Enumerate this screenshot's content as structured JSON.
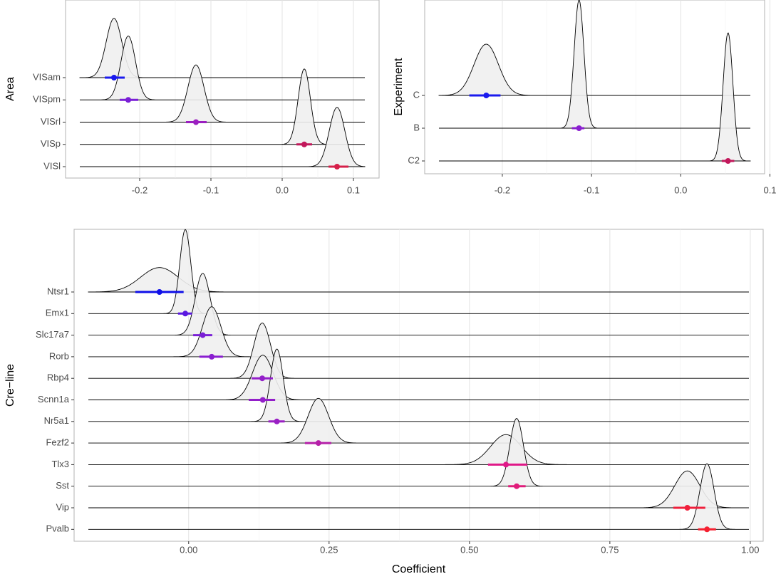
{
  "chart_data": [
    {
      "type": "ridgeline",
      "y_label": "Area",
      "categories": [
        "VISam",
        "VISpm",
        "VISrl",
        "VISp",
        "VISl"
      ],
      "values": [
        -0.236,
        -0.216,
        -0.121,
        0.031,
        0.077
      ],
      "lower": [
        -0.249,
        -0.228,
        -0.135,
        0.02,
        0.065
      ],
      "upper": [
        -0.221,
        -0.202,
        -0.106,
        0.042,
        0.093
      ],
      "colors": [
        "#1a1aee",
        "#7a1fd6",
        "#9b1fc0",
        "#c2185b",
        "#d6204a"
      ],
      "xlim": [
        -0.304,
        0.136
      ],
      "xticks": [
        -0.2,
        -0.1,
        {
          "value": 0,
          "label": "0.0"
        },
        0.1
      ],
      "grid": true
    },
    {
      "type": "ridgeline",
      "y_label": "Experiment",
      "categories": [
        "C",
        "B",
        "C2"
      ],
      "values": [
        -0.218,
        -0.114,
        0.053
      ],
      "lower": [
        -0.237,
        -0.122,
        0.046
      ],
      "upper": [
        -0.202,
        -0.108,
        0.06
      ],
      "colors": [
        "#1a1aee",
        "#8a1fd0",
        "#c2185b"
      ],
      "xlim": [
        -0.287,
        0.094
      ],
      "xticks": [
        -0.2,
        -0.1,
        {
          "value": 0,
          "label": "0.0"
        },
        0.1
      ],
      "grid": true
    },
    {
      "type": "ridgeline",
      "y_label": "Cre−line",
      "x_label": "Coefficient",
      "categories": [
        "Ntsr1",
        "Emx1",
        "Slc17a7",
        "Rorb",
        "Rbp4",
        "Scnn1a",
        "Nr5a1",
        "Fezf2",
        "Tlx3",
        "Sst",
        "Vip",
        "Pvalb"
      ],
      "values": [
        -0.052,
        -0.006,
        0.025,
        0.041,
        0.131,
        0.132,
        0.157,
        0.231,
        0.565,
        0.584,
        0.888,
        0.923
      ],
      "lower": [
        -0.095,
        -0.019,
        0.008,
        0.019,
        0.112,
        0.107,
        0.142,
        0.207,
        0.533,
        0.569,
        0.863,
        0.907
      ],
      "upper": [
        -0.009,
        0.006,
        0.042,
        0.061,
        0.15,
        0.154,
        0.171,
        0.254,
        0.603,
        0.6,
        0.92,
        0.939
      ],
      "colors": [
        "#1010e8",
        "#5a18e0",
        "#7a1fd6",
        "#8a1fd0",
        "#931fc9",
        "#931fc9",
        "#9a20c4",
        "#b51fa8",
        "#e01888",
        "#e01c7a",
        "#f0203c",
        "#f52030"
      ],
      "xlim": [
        -0.204,
        1.023
      ],
      "xticks": [
        {
          "value": 0,
          "label": "0.00"
        },
        0.25,
        {
          "value": 0.5,
          "label": "0.50"
        },
        0.75,
        {
          "value": 1,
          "label": "1.00"
        }
      ],
      "grid": true
    }
  ]
}
